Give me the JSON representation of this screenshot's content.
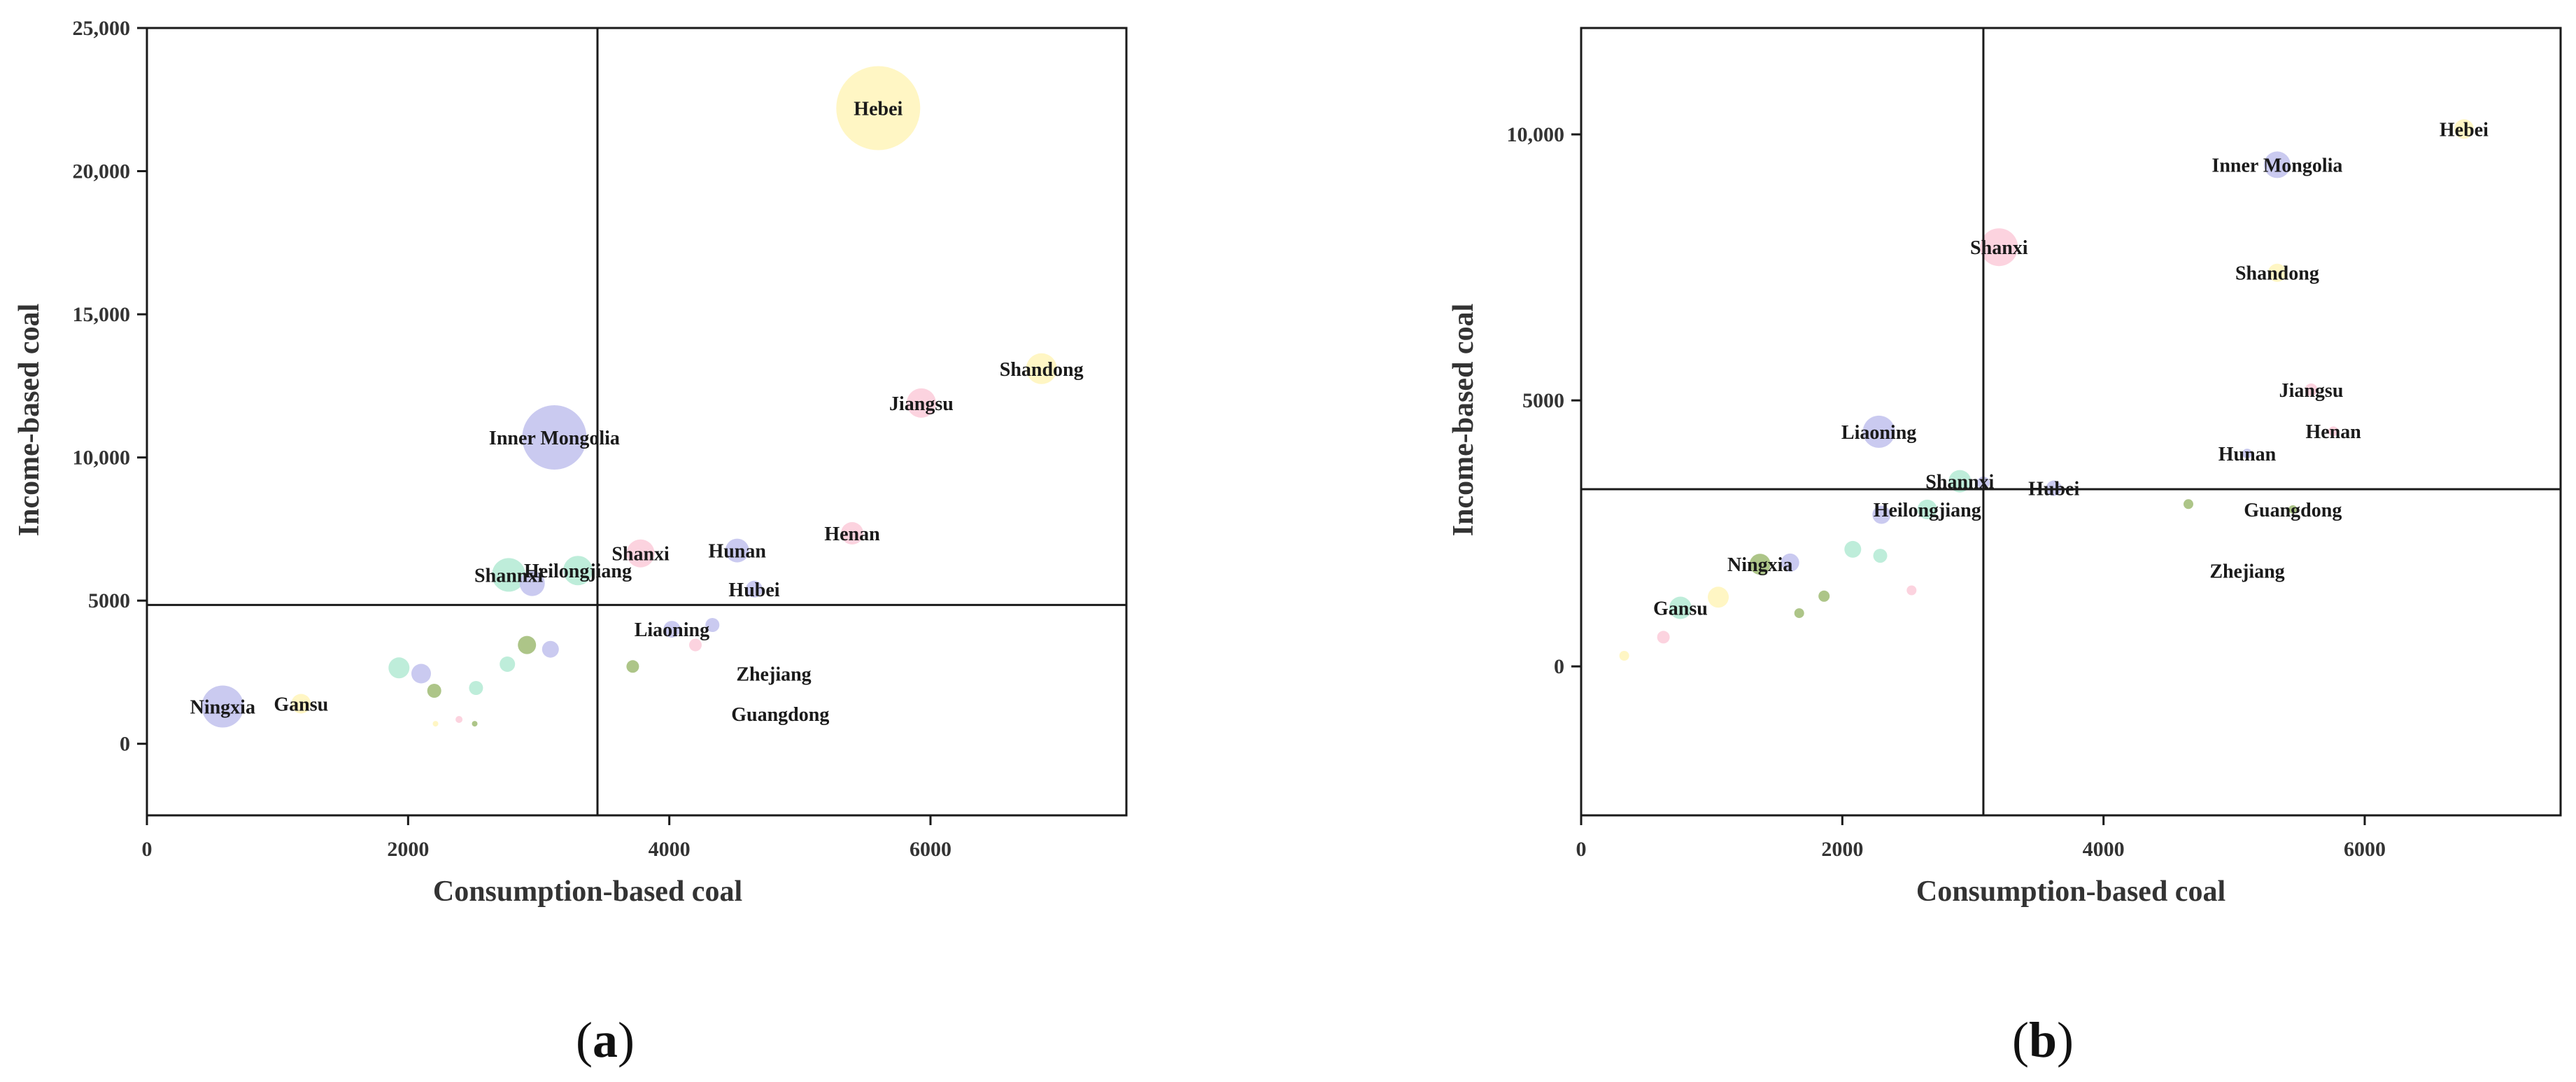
{
  "figure": {
    "panels": [
      {
        "caption": "(a)",
        "caption_letter": "a"
      },
      {
        "caption": "(b)",
        "caption_letter": "b"
      }
    ]
  },
  "palette": {
    "axis": "#1a1a1a",
    "text": "#333333",
    "background": "#ffffff"
  },
  "chart_data": [
    {
      "type": "scatter",
      "subtype": "bubble",
      "panel": "(a)",
      "title": "",
      "xlabel": "Consumption-based coal",
      "ylabel": "Income-based coal",
      "xlim": [
        0,
        7500
      ],
      "ylim": [
        -2500,
        25000
      ],
      "xticks": [
        0,
        2000,
        4000,
        6000
      ],
      "xtick_labels": [
        "0",
        "2000",
        "4000",
        "6000"
      ],
      "yticks": [
        0,
        5000,
        10000,
        15000,
        20000,
        25000
      ],
      "ytick_labels": [
        "0",
        "5000",
        "10,000",
        "15,000",
        "20,000",
        "25,000"
      ],
      "reference_lines": {
        "x": 3450,
        "y": 4850
      },
      "grid": false,
      "points": [
        {
          "label": "Hebei",
          "x": 5600,
          "y": 22200,
          "size": 60,
          "color": "#fff5bf"
        },
        {
          "label": "Shandong",
          "x": 6850,
          "y": 13100,
          "size": 22,
          "color": "#fff5bf"
        },
        {
          "label": "Jiangsu",
          "x": 5930,
          "y": 11900,
          "size": 21,
          "color": "#fccfdc"
        },
        {
          "label": "Inner Mongolia",
          "x": 3120,
          "y": 10700,
          "size": 46,
          "color": "#c5c5ef"
        },
        {
          "label": "Henan",
          "x": 5400,
          "y": 7350,
          "size": 16,
          "color": "#fccfdc"
        },
        {
          "label": "Hunan",
          "x": 4520,
          "y": 6750,
          "size": 17,
          "color": "#c5c5ef"
        },
        {
          "label": "Shanxi",
          "x": 3780,
          "y": 6650,
          "size": 20,
          "color": "#fccfdc"
        },
        {
          "label": "Heilongjiang",
          "x": 3300,
          "y": 6050,
          "size": 21,
          "color": "#b9ebd7"
        },
        {
          "label": "Shannxi",
          "x": 2770,
          "y": 5900,
          "size": 24,
          "color": "#b9ebd7"
        },
        {
          "label": "",
          "x": 2950,
          "y": 5600,
          "size": 18,
          "color": "#c5c5ef"
        },
        {
          "label": "Hubei",
          "x": 4650,
          "y": 5400,
          "size": 12,
          "color": "#c5c5ef"
        },
        {
          "label": "Liaoning",
          "x": 4020,
          "y": 4000,
          "size": 12,
          "color": "#c5c5ef"
        },
        {
          "label": "",
          "x": 4330,
          "y": 4150,
          "size": 10,
          "color": "#c5c5ef"
        },
        {
          "label": "",
          "x": 4200,
          "y": 3450,
          "size": 9,
          "color": "#fccfdc"
        },
        {
          "label": "",
          "x": 2910,
          "y": 3450,
          "size": 13,
          "color": "#a6c07e"
        },
        {
          "label": "",
          "x": 3090,
          "y": 3300,
          "size": 12,
          "color": "#c5c5ef"
        },
        {
          "label": "",
          "x": 2760,
          "y": 2780,
          "size": 11,
          "color": "#b9ebd7"
        },
        {
          "label": "",
          "x": 3720,
          "y": 2700,
          "size": 9,
          "color": "#a6c07e"
        },
        {
          "label": "",
          "x": 1930,
          "y": 2650,
          "size": 15,
          "color": "#b9ebd7"
        },
        {
          "label": "",
          "x": 2100,
          "y": 2450,
          "size": 14,
          "color": "#c5c5ef"
        },
        {
          "label": "",
          "x": 2520,
          "y": 1950,
          "size": 10,
          "color": "#b9ebd7"
        },
        {
          "label": "",
          "x": 2200,
          "y": 1850,
          "size": 10,
          "color": "#a6c07e"
        },
        {
          "label": "Zhejiang",
          "x": 4800,
          "y": 2450,
          "size": 0,
          "color": "#fccfdc"
        },
        {
          "label": "Gansu",
          "x": 1180,
          "y": 1400,
          "size": 14,
          "color": "#fff5bf"
        },
        {
          "label": "Ningxia",
          "x": 580,
          "y": 1300,
          "size": 30,
          "color": "#c5c5ef"
        },
        {
          "label": "Guangdong",
          "x": 4850,
          "y": 1050,
          "size": 0,
          "color": "#a6c07e"
        },
        {
          "label": "",
          "x": 2390,
          "y": 850,
          "size": 5,
          "color": "#fccfdc"
        },
        {
          "label": "",
          "x": 2210,
          "y": 700,
          "size": 4,
          "color": "#fff5bf"
        },
        {
          "label": "",
          "x": 2510,
          "y": 700,
          "size": 4,
          "color": "#a6c07e"
        }
      ]
    },
    {
      "type": "scatter",
      "subtype": "bubble",
      "panel": "(b)",
      "title": "",
      "xlabel": "Consumption-based coal",
      "ylabel": "Income-based coal",
      "xlim": [
        0,
        7500
      ],
      "ylim": [
        -2800,
        12000
      ],
      "xticks": [
        0,
        2000,
        4000,
        6000
      ],
      "xtick_labels": [
        "0",
        "2000",
        "4000",
        "6000"
      ],
      "yticks": [
        0,
        5000,
        10000
      ],
      "ytick_labels": [
        "0",
        "5000",
        "10,000"
      ],
      "reference_lines": {
        "x": 3080,
        "y": 3330
      },
      "grid": false,
      "points": [
        {
          "label": "Hebei",
          "x": 6760,
          "y": 10100,
          "size": 14,
          "color": "#fff5bf"
        },
        {
          "label": "Inner Mongolia",
          "x": 5330,
          "y": 9430,
          "size": 19,
          "color": "#c5c5ef"
        },
        {
          "label": "Shanxi",
          "x": 3200,
          "y": 7880,
          "size": 27,
          "color": "#fccfdc"
        },
        {
          "label": "Shandong",
          "x": 5330,
          "y": 7400,
          "size": 13,
          "color": "#fff5bf"
        },
        {
          "label": "Jiangsu",
          "x": 5590,
          "y": 5200,
          "size": 9,
          "color": "#fccfdc"
        },
        {
          "label": "Liaoning",
          "x": 2280,
          "y": 4410,
          "size": 23,
          "color": "#c5c5ef"
        },
        {
          "label": "Henan",
          "x": 5760,
          "y": 4420,
          "size": 7,
          "color": "#fccfdc"
        },
        {
          "label": "Hunan",
          "x": 5100,
          "y": 4000,
          "size": 7,
          "color": "#c5c5ef"
        },
        {
          "label": "Shannxi",
          "x": 2900,
          "y": 3480,
          "size": 16,
          "color": "#b9ebd7"
        },
        {
          "label": "",
          "x": 3080,
          "y": 3450,
          "size": 9,
          "color": "#c5c5ef"
        },
        {
          "label": "Hubei",
          "x": 3620,
          "y": 3350,
          "size": 11,
          "color": "#c5c5ef"
        },
        {
          "label": "Heilongjiang",
          "x": 2650,
          "y": 2950,
          "size": 14,
          "color": "#b9ebd7"
        },
        {
          "label": "",
          "x": 2300,
          "y": 2850,
          "size": 13,
          "color": "#c5c5ef"
        },
        {
          "label": "",
          "x": 4650,
          "y": 3050,
          "size": 7,
          "color": "#a6c07e"
        },
        {
          "label": "Guangdong",
          "x": 5450,
          "y": 2950,
          "size": 6,
          "color": "#a6c07e"
        },
        {
          "label": "",
          "x": 2080,
          "y": 2200,
          "size": 12,
          "color": "#b9ebd7"
        },
        {
          "label": "",
          "x": 2290,
          "y": 2080,
          "size": 10,
          "color": "#b9ebd7"
        },
        {
          "label": "Ningxia",
          "x": 1370,
          "y": 1920,
          "size": 15,
          "color": "#a6c07e"
        },
        {
          "label": "",
          "x": 1600,
          "y": 1950,
          "size": 13,
          "color": "#c5c5ef"
        },
        {
          "label": "Zhejiang",
          "x": 5100,
          "y": 1800,
          "size": 0,
          "color": "#fccfdc"
        },
        {
          "label": "",
          "x": 2530,
          "y": 1430,
          "size": 7,
          "color": "#fccfdc"
        },
        {
          "label": "",
          "x": 1860,
          "y": 1320,
          "size": 8,
          "color": "#a6c07e"
        },
        {
          "label": "",
          "x": 1050,
          "y": 1300,
          "size": 15,
          "color": "#fff5bf"
        },
        {
          "label": "Gansu",
          "x": 760,
          "y": 1100,
          "size": 16,
          "color": "#b9ebd7"
        },
        {
          "label": "",
          "x": 1670,
          "y": 1000,
          "size": 7,
          "color": "#a6c07e"
        },
        {
          "label": "",
          "x": 630,
          "y": 550,
          "size": 9,
          "color": "#fccfdc"
        },
        {
          "label": "",
          "x": 330,
          "y": 200,
          "size": 7,
          "color": "#fff5bf"
        }
      ]
    }
  ]
}
